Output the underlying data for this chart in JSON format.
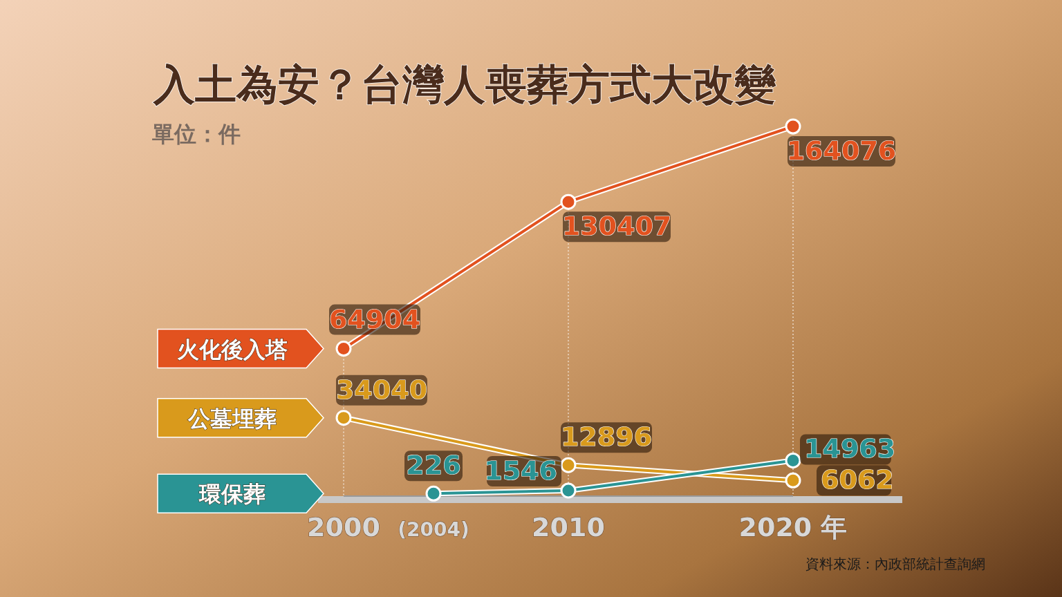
{
  "chart_data": {
    "type": "line",
    "title": "入土為安？台灣人喪葬方式大改變",
    "subtitle": "單位：件",
    "annotations": [
      "資料來源：內政部統計查詢網"
    ],
    "xlim": [
      2000,
      2020
    ],
    "xticks": [
      {
        "value": 2000,
        "label": "2000"
      },
      {
        "value": 2004,
        "label": "(2004)"
      },
      {
        "value": 2010,
        "label": "2010"
      },
      {
        "value": 2020,
        "label": "2020 年"
      }
    ],
    "series": [
      {
        "name": "火化後入塔",
        "color": "#e2521f",
        "x": [
          2000,
          2010,
          2020
        ],
        "values": [
          64904,
          130407,
          164076
        ]
      },
      {
        "name": "公墓埋葬",
        "color": "#d99a1c",
        "x": [
          2000,
          2010,
          2020
        ],
        "values": [
          34040,
          12896,
          6062
        ]
      },
      {
        "name": "環保葬",
        "color": "#2a9494",
        "x": [
          2004,
          2010,
          2020
        ],
        "values": [
          226,
          1546,
          14963
        ]
      }
    ],
    "data_labels": true,
    "marker": "circle",
    "legend": "left",
    "grid": "x",
    "tick_labels": "x"
  }
}
